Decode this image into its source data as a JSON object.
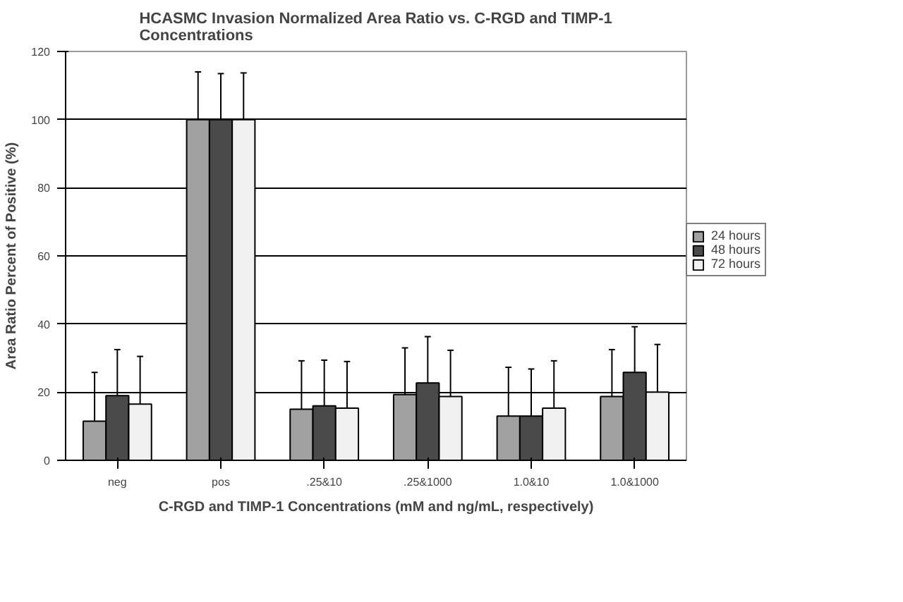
{
  "chart_data": {
    "type": "bar",
    "title": "HCASMC Invasion Normalized Area Ratio vs. C-RGD and TIMP-1 Concentrations",
    "xlabel": "C-RGD and TIMP-1 Concentrations (mM and ng/mL, respectively)",
    "ylabel": "Area Ratio Percent of Positive (%)",
    "categories": [
      "neg",
      "pos",
      ".25&10",
      ".25&1000",
      "1.0&10",
      "1.0&1000"
    ],
    "series": [
      {
        "name": "24 hours",
        "color": "#a0a0a0",
        "values": [
          11.5,
          100,
          15,
          19.3,
          13,
          18.7
        ],
        "errors": [
          [
            11.5,
            25.8
          ],
          [
            100,
            114
          ],
          [
            15,
            29.2
          ],
          [
            19.3,
            33
          ],
          [
            13,
            27.3
          ],
          [
            18.7,
            32.5
          ]
        ]
      },
      {
        "name": "48 hours",
        "color": "#4a4a4a",
        "values": [
          19,
          100,
          16,
          22.7,
          13,
          25.8
        ],
        "errors": [
          [
            19,
            32.5
          ],
          [
            100,
            113.5
          ],
          [
            16,
            29.4
          ],
          [
            22.7,
            36.3
          ],
          [
            13,
            26.8
          ],
          [
            25.8,
            39.2
          ]
        ]
      },
      {
        "name": "72 hours",
        "color": "#f0f0f0",
        "values": [
          16.5,
          100,
          15.3,
          18.7,
          15.3,
          20
        ],
        "errors": [
          [
            16.5,
            30.5
          ],
          [
            100,
            113.7
          ],
          [
            15.3,
            29
          ],
          [
            18.7,
            32.3
          ],
          [
            15.3,
            29.2
          ],
          [
            20,
            34
          ]
        ]
      }
    ],
    "ylim": [
      0,
      120
    ],
    "yticks": [
      0,
      20,
      40,
      60,
      80,
      100,
      120
    ],
    "grid": "y",
    "legend": "right"
  }
}
